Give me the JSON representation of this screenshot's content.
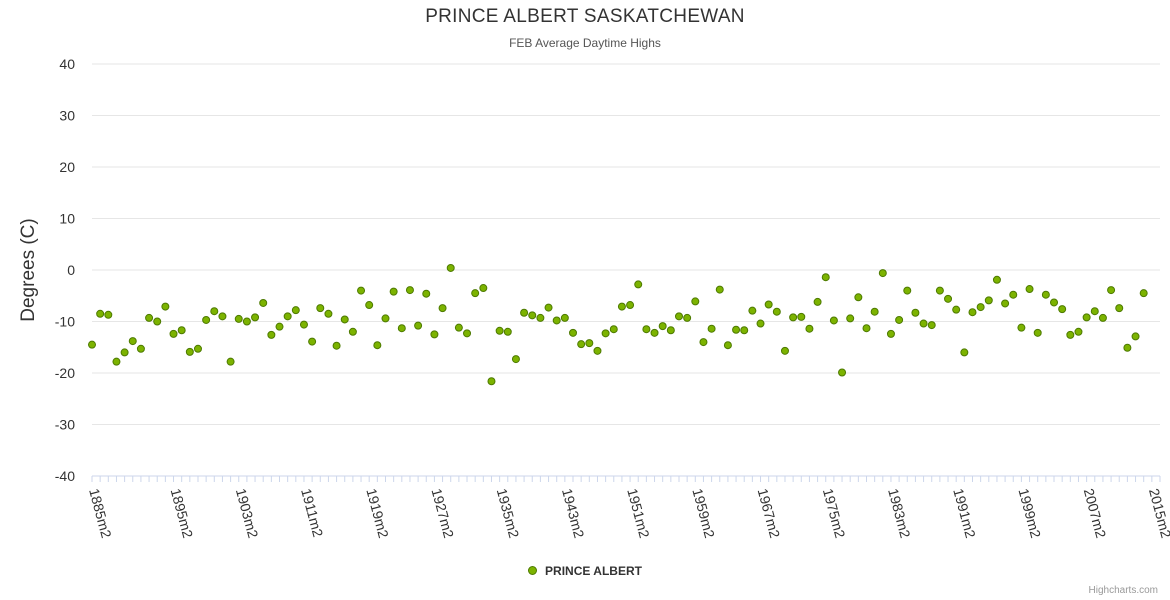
{
  "chart_data": {
    "type": "scatter",
    "title": "PRINCE ALBERT SASKATCHEWAN",
    "subtitle": "FEB Average Daytime Highs",
    "ylabel": "Degrees (C)",
    "xlabel": "",
    "ylim": [
      -40,
      40
    ],
    "yticks": [
      40,
      30,
      20,
      10,
      0,
      -10,
      -20,
      -30,
      -40
    ],
    "x_tick_labels": [
      "1885m2",
      "1895m2",
      "1903m2",
      "1911m2",
      "1919m2",
      "1927m2",
      "1935m2",
      "1943m2",
      "1951m2",
      "1959m2",
      "1967m2",
      "1975m2",
      "1983m2",
      "1991m2",
      "1999m2",
      "2007m2",
      "2015m2"
    ],
    "series": [
      {
        "name": "PRINCE ALBERT",
        "color": "#7cb300",
        "x_start": 1885,
        "x_end": 2016,
        "values": [
          -14.5,
          -8.5,
          -8.7,
          -17.8,
          -16.0,
          -13.8,
          -15.3,
          -9.3,
          -10.0,
          -7.1,
          -12.4,
          -11.7,
          -15.9,
          -15.3,
          -9.7,
          -8.0,
          -9.0,
          -17.8,
          -9.5,
          -10.0,
          -9.2,
          -6.4,
          -12.6,
          -11.0,
          -9.0,
          -7.8,
          -10.6,
          -13.9,
          -7.4,
          -8.5,
          -14.7,
          -9.6,
          -12.0,
          -4.0,
          -6.8,
          -14.6,
          -9.4,
          -4.2,
          -11.3,
          -3.9,
          -10.8,
          -4.6,
          -12.5,
          -7.4,
          0.4,
          -11.2,
          -12.3,
          -4.5,
          -3.5,
          -21.6,
          -11.8,
          -12.0,
          -17.3,
          -8.3,
          -8.8,
          -9.3,
          -7.3,
          -9.8,
          -9.3,
          -12.2,
          -14.4,
          -14.2,
          -15.7,
          -12.3,
          -11.5,
          -7.1,
          -6.8,
          -2.8,
          -11.5,
          -12.2,
          -10.9,
          -11.7,
          -9.0,
          -9.3,
          -6.1,
          -14.0,
          -11.4,
          -3.8,
          -14.6,
          -11.6,
          -11.7,
          -7.9,
          -10.4,
          -6.7,
          -8.1,
          -15.7,
          -9.2,
          -9.1,
          -11.4,
          -6.2,
          -1.4,
          -9.8,
          -19.9,
          -9.4,
          -5.3,
          -11.3,
          -8.1,
          -0.6,
          -12.4,
          -9.7,
          -4.0,
          -8.3,
          -10.4,
          -10.7,
          -4.0,
          -5.6,
          -7.7,
          -16.0,
          -8.2,
          -7.2,
          -5.9,
          -1.9,
          -6.5,
          -4.8,
          -11.2,
          -3.7,
          -12.2,
          -4.8,
          -6.3,
          -7.6,
          -12.6,
          -12.0,
          -9.2,
          -8.0,
          -9.3,
          -3.9,
          -7.4,
          -15.1,
          -12.9,
          -4.5
        ]
      }
    ],
    "legend_position": "bottom-center"
  },
  "credits": "Highcharts.com"
}
